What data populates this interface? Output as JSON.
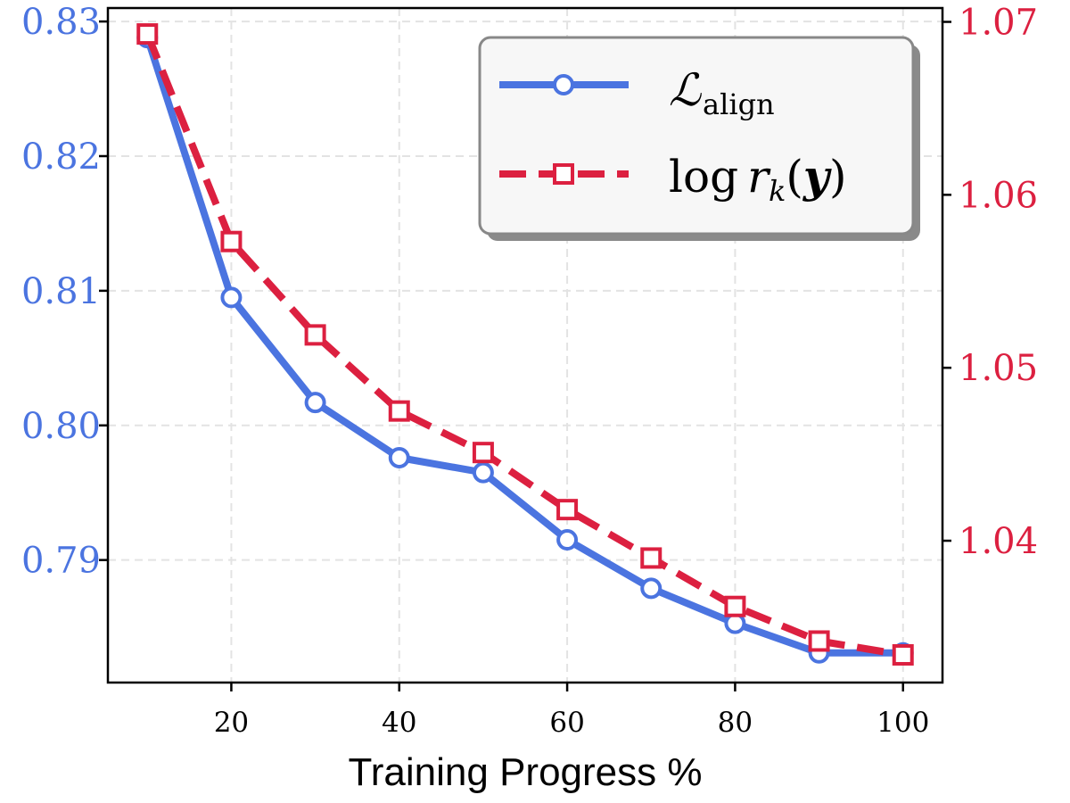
{
  "chart_data": {
    "type": "line",
    "title": "",
    "xlabel": "Training Progress %",
    "ylabel_left": "",
    "ylabel_right": "",
    "x": [
      10,
      20,
      30,
      40,
      50,
      60,
      70,
      80,
      90,
      100
    ],
    "xlim": [
      5.3,
      104.7
    ],
    "ylim_left": [
      0.7809,
      0.831
    ],
    "ylim_right": [
      1.0318,
      1.0708
    ],
    "x_ticks": [
      20,
      40,
      60,
      80,
      100
    ],
    "x_tick_labels": [
      "20",
      "40",
      "60",
      "80",
      "100"
    ],
    "y_ticks_left": [
      0.79,
      0.8,
      0.81,
      0.82,
      0.83
    ],
    "y_tick_labels_left": [
      "0.79",
      "0.80",
      "0.81",
      "0.82",
      "0.83"
    ],
    "y_ticks_right": [
      1.04,
      1.05,
      1.06,
      1.07
    ],
    "y_tick_labels_right": [
      "1.04",
      "1.05",
      "1.06",
      "1.07"
    ],
    "grid": true,
    "legend_position": "top-right",
    "series": [
      {
        "name": "L_align",
        "legend_main": "ℒ",
        "legend_sub": "align",
        "axis": "left",
        "color": "#4b74e0",
        "marker": "circle",
        "linestyle": "solid",
        "values": [
          0.8288,
          0.8095,
          0.8017,
          0.7976,
          0.7965,
          0.7915,
          0.7879,
          0.7853,
          0.7831,
          0.7831
        ]
      },
      {
        "name": "log r_k(y)",
        "legend_fn": "log",
        "legend_var": "r",
        "legend_sub": "k",
        "legend_open": "(",
        "legend_arg": "y",
        "legend_close": ")",
        "axis": "right",
        "color": "#dc2040",
        "marker": "square",
        "linestyle": "dashed",
        "values": [
          1.0693,
          1.0573,
          1.0519,
          1.0475,
          1.0451,
          1.0418,
          1.039,
          1.0362,
          1.0342,
          1.0334
        ]
      }
    ],
    "colors": {
      "left_axis": "#4b74e0",
      "right_axis": "#dc2040",
      "grid": "#e3e3e3",
      "axis": "#000000",
      "legend_bg": "#f7f7f7",
      "legend_border": "#888888"
    }
  }
}
